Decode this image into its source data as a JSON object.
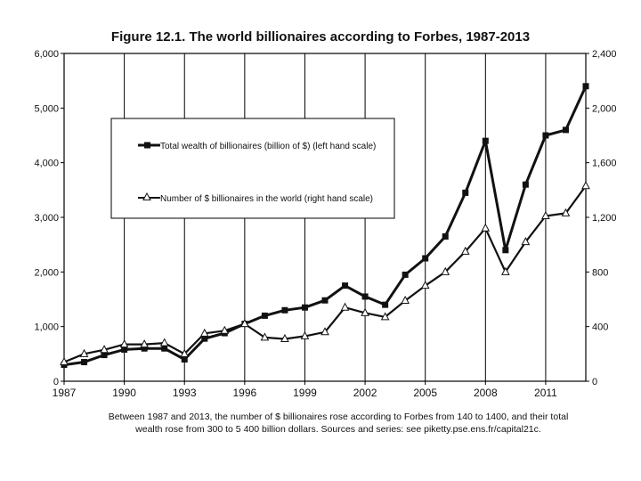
{
  "chart_data": {
    "type": "line",
    "title": "Figure 12.1. The world billionaires according to Forbes, 1987-2013",
    "x": [
      1987,
      1988,
      1989,
      1990,
      1991,
      1992,
      1993,
      1994,
      1995,
      1996,
      1997,
      1998,
      1999,
      2000,
      2001,
      2002,
      2003,
      2004,
      2005,
      2006,
      2007,
      2008,
      2009,
      2010,
      2011,
      2012,
      2013
    ],
    "xlim": [
      1987,
      2013
    ],
    "x_ticks": [
      "1987",
      "1990",
      "1993",
      "1996",
      "1999",
      "2002",
      "2005",
      "2008",
      "2011"
    ],
    "ylim_left": [
      0,
      6000
    ],
    "ylim_right": [
      0,
      2400
    ],
    "left_ticks": [
      "0",
      "1,000",
      "2,000",
      "3,000",
      "4,000",
      "5,000",
      "6,000"
    ],
    "right_ticks": [
      "0",
      "400",
      "800",
      "1,200",
      "1,600",
      "2,000",
      "2,400"
    ],
    "grid": "vertical",
    "legend_position": "upper-left inside",
    "series": [
      {
        "name": "Total wealth of billionaires (billion of $) (left hand scale)",
        "axis": "left",
        "marker": "square",
        "values": [
          300,
          350,
          480,
          580,
          600,
          600,
          400,
          780,
          880,
          1050,
          1200,
          1300,
          1350,
          1480,
          1750,
          1550,
          1400,
          1950,
          2250,
          2650,
          3450,
          4400,
          2400,
          3600,
          4500,
          4600,
          5400
        ]
      },
      {
        "name": "Number of $ billionaires in the world (right hand scale)",
        "axis": "right",
        "marker": "triangle",
        "values": [
          140,
          200,
          230,
          270,
          270,
          280,
          200,
          350,
          370,
          420,
          320,
          310,
          330,
          360,
          540,
          500,
          470,
          590,
          700,
          800,
          950,
          1120,
          800,
          1020,
          1210,
          1230,
          1430
        ]
      }
    ],
    "caption_lines": [
      "Between 1987 and 2013, the number of $ billionaires rose according to Forbes from 140 to 1400, and their total",
      "wealth rose from 300 to 5 400 billion dollars. Sources and series: see piketty.pse.ens.fr/capital21c."
    ]
  }
}
